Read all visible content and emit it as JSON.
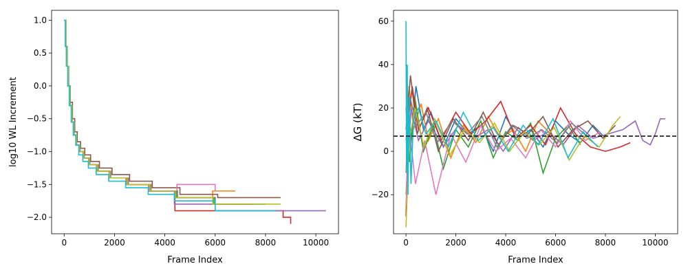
{
  "chart_data": [
    {
      "type": "line",
      "xlabel": "Frame Index",
      "ylabel": "log10 WL Increment",
      "xlim": [
        -500,
        10900
      ],
      "ylim": [
        -2.25,
        1.15
      ],
      "xticks": [
        0,
        2000,
        4000,
        6000,
        8000,
        10000
      ],
      "xtick_labels": [
        "0",
        "2000",
        "4000",
        "6000",
        "8000",
        "10000"
      ],
      "yticks": [
        1.0,
        0.5,
        0.0,
        -0.5,
        -1.0,
        -1.5,
        -2.0
      ],
      "ytick_labels": [
        "1.0",
        "0.5",
        "0.0",
        "−0.5",
        "−1.0",
        "−1.5",
        "−2.0"
      ],
      "grid": false,
      "series": [
        {
          "color": "#1f77b4",
          "x": [
            0,
            60,
            100,
            160,
            220,
            300,
            380,
            480,
            600,
            760,
            980,
            1300,
            1800,
            2500,
            3400,
            4500,
            6000,
            8000
          ],
          "y": [
            1.0,
            0.6,
            0.3,
            0.0,
            -0.3,
            -0.55,
            -0.75,
            -0.9,
            -1.0,
            -1.1,
            -1.2,
            -1.3,
            -1.4,
            -1.5,
            -1.6,
            -1.7,
            -1.8,
            -1.8
          ]
        },
        {
          "color": "#ff7f0e",
          "x": [
            0,
            50,
            90,
            150,
            210,
            290,
            370,
            470,
            590,
            750,
            970,
            1280,
            1780,
            2450,
            3350,
            4400,
            5900,
            6800
          ],
          "y": [
            1.0,
            0.6,
            0.3,
            0.0,
            -0.3,
            -0.55,
            -0.75,
            -0.9,
            -1.0,
            -1.1,
            -1.2,
            -1.3,
            -1.4,
            -1.5,
            -1.6,
            -1.7,
            -1.6,
            -1.6
          ]
        },
        {
          "color": "#2ca02c",
          "x": [
            0,
            55,
            95,
            155,
            215,
            295,
            375,
            475,
            595,
            755,
            975,
            1290,
            1790,
            2480,
            3380,
            4450,
            5950,
            7100
          ],
          "y": [
            1.0,
            0.6,
            0.3,
            0.0,
            -0.3,
            -0.55,
            -0.75,
            -0.9,
            -1.0,
            -1.1,
            -1.2,
            -1.3,
            -1.4,
            -1.5,
            -1.6,
            -1.7,
            -1.8,
            -1.8
          ]
        },
        {
          "color": "#d62728",
          "x": [
            0,
            65,
            110,
            170,
            230,
            310,
            390,
            490,
            610,
            780,
            1000,
            1320,
            1820,
            2520,
            3420,
            4400,
            8500,
            8700,
            9000
          ],
          "y": [
            1.0,
            0.6,
            0.3,
            0.0,
            -0.3,
            -0.55,
            -0.75,
            -0.9,
            -1.0,
            -1.1,
            -1.2,
            -1.3,
            -1.4,
            -1.5,
            -1.6,
            -1.9,
            -1.9,
            -2.0,
            -2.1
          ]
        },
        {
          "color": "#9467bd",
          "x": [
            0,
            60,
            105,
            165,
            225,
            305,
            385,
            485,
            605,
            770,
            990,
            1310,
            1810,
            2510,
            3410,
            4380,
            6000,
            10400
          ],
          "y": [
            1.0,
            0.6,
            0.3,
            0.0,
            -0.3,
            -0.55,
            -0.75,
            -0.9,
            -1.0,
            -1.1,
            -1.2,
            -1.3,
            -1.4,
            -1.5,
            -1.6,
            -1.8,
            -1.9,
            -1.9
          ]
        },
        {
          "color": "#8c564b",
          "x": [
            0,
            70,
            120,
            180,
            240,
            330,
            420,
            520,
            650,
            820,
            1050,
            1400,
            1900,
            2600,
            3500,
            4600,
            6100,
            8600
          ],
          "y": [
            1.0,
            0.6,
            0.3,
            0.0,
            -0.25,
            -0.5,
            -0.7,
            -0.85,
            -0.95,
            -1.05,
            -1.15,
            -1.25,
            -1.35,
            -1.45,
            -1.55,
            -1.65,
            -1.7,
            -1.7
          ]
        },
        {
          "color": "#e377c2",
          "x": [
            0,
            58,
            98,
            158,
            218,
            298,
            378,
            478,
            598,
            758,
            978,
            1295,
            1795,
            2490,
            3390,
            4480,
            5600,
            6000
          ],
          "y": [
            1.0,
            0.6,
            0.3,
            0.0,
            -0.3,
            -0.55,
            -0.75,
            -0.9,
            -1.0,
            -1.1,
            -1.2,
            -1.3,
            -1.4,
            -1.5,
            -1.6,
            -1.5,
            -1.5,
            -1.6
          ]
        },
        {
          "color": "#7f7f7f",
          "x": [
            0,
            68,
            115,
            175,
            240,
            320,
            400,
            500,
            630,
            800,
            1020,
            1350,
            1850,
            2550,
            3450,
            4500,
            6000,
            7500
          ],
          "y": [
            1.0,
            0.6,
            0.3,
            0.0,
            -0.3,
            -0.55,
            -0.75,
            -0.9,
            -1.0,
            -1.1,
            -1.2,
            -1.3,
            -1.4,
            -1.5,
            -1.6,
            -1.7,
            -1.8,
            -1.8
          ]
        },
        {
          "color": "#bcbd22",
          "x": [
            0,
            62,
            108,
            168,
            228,
            308,
            388,
            488,
            608,
            775,
            995,
            1315,
            1815,
            2515,
            3415,
            4420,
            5900,
            8600
          ],
          "y": [
            1.0,
            0.6,
            0.3,
            0.0,
            -0.3,
            -0.55,
            -0.75,
            -0.9,
            -1.0,
            -1.1,
            -1.2,
            -1.3,
            -1.4,
            -1.5,
            -1.6,
            -1.7,
            -1.8,
            -1.8
          ]
        },
        {
          "color": "#17becf",
          "x": [
            0,
            45,
            85,
            140,
            200,
            280,
            360,
            460,
            580,
            740,
            960,
            1270,
            1770,
            2440,
            3340,
            4380,
            6000,
            8400
          ],
          "y": [
            1.0,
            0.6,
            0.3,
            0.0,
            -0.3,
            -0.55,
            -0.75,
            -0.9,
            -1.05,
            -1.15,
            -1.25,
            -1.35,
            -1.45,
            -1.55,
            -1.65,
            -1.75,
            -1.9,
            -1.9
          ]
        }
      ]
    },
    {
      "type": "line",
      "xlabel": "Frame Index",
      "ylabel": "ΔG (kT)",
      "xlim": [
        -500,
        10900
      ],
      "ylim": [
        -38,
        65
      ],
      "xticks": [
        0,
        2000,
        4000,
        6000,
        8000,
        10000
      ],
      "xtick_labels": [
        "0",
        "2000",
        "4000",
        "6000",
        "8000",
        "10000"
      ],
      "yticks": [
        60,
        40,
        20,
        0,
        -20
      ],
      "ytick_labels": [
        "60",
        "40",
        "20",
        "0",
        "−20"
      ],
      "grid": false,
      "reference_line": {
        "y": 7,
        "style": "dashed",
        "color": "#000000"
      },
      "series": [
        {
          "color": "#1f77b4",
          "x": [
            0,
            100,
            200,
            400,
            700,
            1000,
            1500,
            2000,
            2500,
            3000,
            3500,
            4000,
            4500,
            5000,
            5500,
            6000,
            6500,
            7000,
            7500,
            8000
          ],
          "y": [
            40,
            20,
            5,
            30,
            10,
            18,
            2,
            15,
            8,
            12,
            0,
            16,
            6,
            10,
            2,
            14,
            8,
            4,
            12,
            6
          ]
        },
        {
          "color": "#ff7f0e",
          "x": [
            0,
            120,
            300,
            600,
            900,
            1300,
            1800,
            2300,
            2800,
            3300,
            3800,
            4300,
            4800,
            5300,
            5800,
            6300,
            6800
          ],
          "y": [
            -10,
            30,
            10,
            22,
            5,
            15,
            -3,
            12,
            4,
            16,
            6,
            10,
            0,
            14,
            8,
            3,
            11
          ]
        },
        {
          "color": "#2ca02c",
          "x": [
            0,
            150,
            350,
            700,
            1100,
            1500,
            2000,
            2500,
            3000,
            3500,
            4000,
            4500,
            5000,
            5500,
            6000,
            6500,
            7000
          ],
          "y": [
            20,
            -5,
            25,
            0,
            12,
            -8,
            10,
            2,
            14,
            -3,
            9,
            5,
            13,
            -10,
            6,
            12,
            3
          ]
        },
        {
          "color": "#d62728",
          "x": [
            0,
            100,
            250,
            500,
            900,
            1400,
            2000,
            2600,
            3200,
            3800,
            4400,
            5000,
            5600,
            6200,
            6800,
            7400,
            8000,
            8600,
            9000
          ],
          "y": [
            -30,
            15,
            30,
            10,
            20,
            5,
            18,
            8,
            14,
            23,
            6,
            12,
            3,
            20,
            8,
            2,
            0,
            2,
            4
          ]
        },
        {
          "color": "#9467bd",
          "x": [
            0,
            200,
            500,
            900,
            1500,
            2100,
            2700,
            3300,
            3900,
            4500,
            5100,
            5700,
            6300,
            6900,
            7500,
            8100,
            8700,
            9200,
            9500,
            9800,
            10000,
            10200,
            10400
          ],
          "y": [
            -20,
            20,
            5,
            14,
            2,
            12,
            6,
            10,
            0,
            11,
            5,
            9,
            3,
            12,
            6,
            8,
            10,
            14,
            5,
            3,
            8,
            15,
            15
          ]
        },
        {
          "color": "#8c564b",
          "x": [
            0,
            180,
            450,
            850,
            1300,
            1900,
            2500,
            3100,
            3700,
            4300,
            4900,
            5500,
            6100,
            6700,
            7300,
            7900,
            8400
          ],
          "y": [
            10,
            35,
            8,
            20,
            0,
            15,
            5,
            18,
            3,
            12,
            8,
            16,
            2,
            10,
            14,
            6,
            12
          ]
        },
        {
          "color": "#e377c2",
          "x": [
            0,
            140,
            380,
            750,
            1200,
            1800,
            2400,
            3000,
            3600,
            4200,
            4800,
            5400,
            6000,
            6600,
            7200,
            7800
          ],
          "y": [
            -25,
            10,
            -15,
            5,
            -20,
            8,
            -5,
            12,
            0,
            6,
            -3,
            10,
            2,
            14,
            5,
            9
          ]
        },
        {
          "color": "#7f7f7f",
          "x": [
            0,
            160,
            420,
            800,
            1250,
            1850,
            2450,
            3050,
            3650,
            4250,
            4850,
            5450,
            6050,
            6650,
            7250
          ],
          "y": [
            5,
            25,
            12,
            18,
            4,
            14,
            8,
            16,
            2,
            12,
            6,
            10,
            4,
            13,
            7
          ]
        },
        {
          "color": "#bcbd22",
          "x": [
            0,
            130,
            360,
            720,
            1150,
            1750,
            2350,
            2950,
            3550,
            4150,
            4750,
            5350,
            5950,
            6550,
            7150,
            7750,
            8300,
            8600
          ],
          "y": [
            -35,
            5,
            20,
            2,
            15,
            -2,
            10,
            4,
            13,
            0,
            9,
            3,
            11,
            -4,
            7,
            2,
            12,
            16
          ]
        },
        {
          "color": "#17becf",
          "x": [
            0,
            20,
            50,
            80,
            120,
            200,
            300,
            500,
            800,
            1200,
            1700,
            2300,
            2900,
            3500,
            4100,
            4700,
            5300,
            5900,
            6500,
            7100,
            7700
          ],
          "y": [
            60,
            -10,
            40,
            -20,
            25,
            -15,
            15,
            20,
            8,
            14,
            2,
            18,
            5,
            11,
            0,
            12,
            3,
            15,
            -3,
            9,
            2
          ]
        }
      ]
    }
  ]
}
